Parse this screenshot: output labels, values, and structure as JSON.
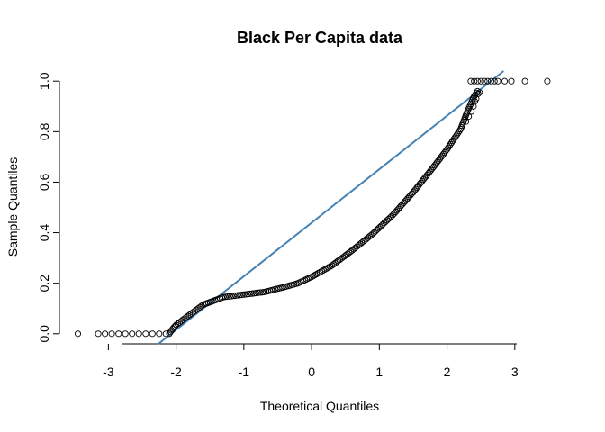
{
  "chart_data": {
    "type": "scatter",
    "subtype": "qq-plot",
    "title": "Black Per Capita data",
    "xlabel": "Theoretical Quantiles",
    "ylabel": "Sample Quantiles",
    "xlim": [
      -3.55,
      3.8
    ],
    "ylim": [
      -0.04,
      1.04
    ],
    "x_ticks": [
      -3,
      -2,
      -1,
      0,
      1,
      2,
      3
    ],
    "x_tick_labels": [
      "-3",
      "-2",
      "-1",
      "0",
      "1",
      "2",
      "3"
    ],
    "y_ticks": [
      0.0,
      0.2,
      0.4,
      0.6,
      0.8,
      1.0
    ],
    "y_tick_labels": [
      "0.0",
      "0.2",
      "0.4",
      "0.6",
      "0.8",
      "1.0"
    ],
    "grid": false,
    "legend": "none",
    "reference_line": {
      "slope": 0.2119,
      "intercept": 0.4393,
      "color": "#4682B4"
    },
    "point_color": "#000000",
    "curve": [
      [
        -3.45,
        0.0
      ],
      [
        -3.15,
        0.0
      ],
      [
        -3.05,
        0.0
      ],
      [
        -2.95,
        0.0
      ],
      [
        -2.85,
        0.0
      ],
      [
        -2.75,
        0.0
      ],
      [
        -2.65,
        0.0
      ],
      [
        -2.55,
        0.0
      ],
      [
        -2.45,
        0.0
      ],
      [
        -2.35,
        0.0
      ],
      [
        -2.25,
        0.0
      ],
      [
        -2.15,
        0.0
      ],
      [
        -2.1,
        0.0
      ],
      [
        -2.05,
        0.02
      ],
      [
        -2.0,
        0.035
      ],
      [
        -1.9,
        0.055
      ],
      [
        -1.8,
        0.075
      ],
      [
        -1.7,
        0.095
      ],
      [
        -1.6,
        0.115
      ],
      [
        -1.5,
        0.125
      ],
      [
        -1.4,
        0.135
      ],
      [
        -1.3,
        0.145
      ],
      [
        -1.0,
        0.155
      ],
      [
        -0.7,
        0.165
      ],
      [
        -0.4,
        0.185
      ],
      [
        -0.2,
        0.2
      ],
      [
        0.0,
        0.225
      ],
      [
        0.3,
        0.27
      ],
      [
        0.6,
        0.33
      ],
      [
        0.9,
        0.395
      ],
      [
        1.2,
        0.47
      ],
      [
        1.5,
        0.56
      ],
      [
        1.8,
        0.66
      ],
      [
        2.0,
        0.73
      ],
      [
        2.2,
        0.81
      ],
      [
        2.3,
        0.88
      ],
      [
        2.4,
        0.94
      ],
      [
        2.45,
        0.96
      ]
    ],
    "tail_points": [
      [
        2.35,
        1.0
      ],
      [
        2.4,
        1.0
      ],
      [
        2.45,
        1.0
      ],
      [
        2.5,
        1.0
      ],
      [
        2.55,
        1.0
      ],
      [
        2.6,
        1.0
      ],
      [
        2.65,
        1.0
      ],
      [
        2.7,
        1.0
      ],
      [
        2.75,
        1.0
      ],
      [
        2.85,
        1.0
      ],
      [
        2.95,
        1.0
      ],
      [
        3.15,
        1.0
      ],
      [
        3.48,
        1.0
      ]
    ]
  }
}
